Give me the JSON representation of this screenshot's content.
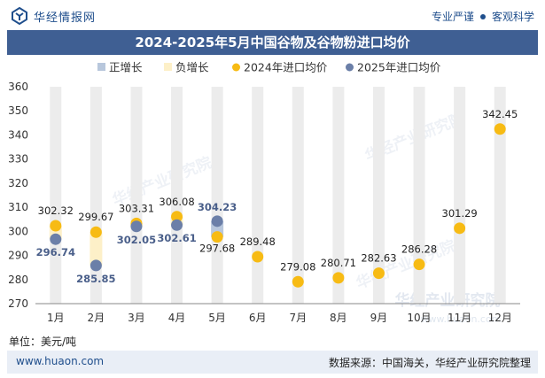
{
  "header": {
    "brand": "华经情报网",
    "slogan_left": "专业严谨",
    "slogan_right": "客观科学"
  },
  "colors": {
    "title_bg": "#3f5f93",
    "pos_bar": "#b8c7dc",
    "neg_bar": "#fdf0c8",
    "series_2024": "#f7bb14",
    "series_2025": "#6b7fa8",
    "grid_col": "#ececec"
  },
  "icons": {
    "logo": "huajing-logo-icon"
  },
  "footer": {
    "unit": "单位：美元/吨",
    "site": "www.huaon.com",
    "source": "数据来源：中国海关，华经产业研究院整理"
  },
  "watermark": {
    "text": "华经产业研究院",
    "url": "www.huaon.com"
  },
  "chart_data": {
    "type": "line",
    "title": "2024-2025年5月中国谷物及谷物粉进口均价",
    "categories": [
      "1月",
      "2月",
      "3月",
      "4月",
      "5月",
      "6月",
      "7月",
      "8月",
      "9月",
      "10月",
      "11月",
      "12月"
    ],
    "legend": [
      "正增长",
      "负增长",
      "2024年进口均价",
      "2025年进口均价"
    ],
    "legend_position": "top",
    "ylim": [
      270,
      360
    ],
    "yticks": [
      270,
      280,
      290,
      300,
      310,
      320,
      330,
      340,
      350,
      360
    ],
    "grid": "vertical column bands",
    "series": [
      {
        "name": "2024年进口均价",
        "values": [
          302.32,
          299.67,
          303.31,
          306.08,
          297.68,
          289.48,
          279.08,
          280.71,
          282.63,
          286.28,
          301.29,
          342.45
        ]
      },
      {
        "name": "2025年进口均价",
        "values": [
          296.74,
          285.85,
          302.05,
          302.61,
          304.23,
          null,
          null,
          null,
          null,
          null,
          null,
          null
        ]
      }
    ],
    "change_bars": [
      {
        "category": "1月",
        "type": "负增长",
        "from": 296.74,
        "to": 302.32
      },
      {
        "category": "2月",
        "type": "负增长",
        "from": 285.85,
        "to": 299.67
      },
      {
        "category": "3月",
        "type": "负增长",
        "from": 302.05,
        "to": 303.31
      },
      {
        "category": "4月",
        "type": "负增长",
        "from": 302.61,
        "to": 306.08
      },
      {
        "category": "5月",
        "type": "正增长",
        "from": 297.68,
        "to": 304.23
      }
    ],
    "labels_2024": [
      "302.32",
      "299.67",
      "303.31",
      "306.08",
      "297.68",
      "289.48",
      "279.08",
      "280.71",
      "282.63",
      "286.28",
      "301.29",
      "342.45"
    ],
    "labels_2025": [
      "296.74",
      "285.85",
      "302.05",
      "302.61",
      "304.23"
    ]
  }
}
